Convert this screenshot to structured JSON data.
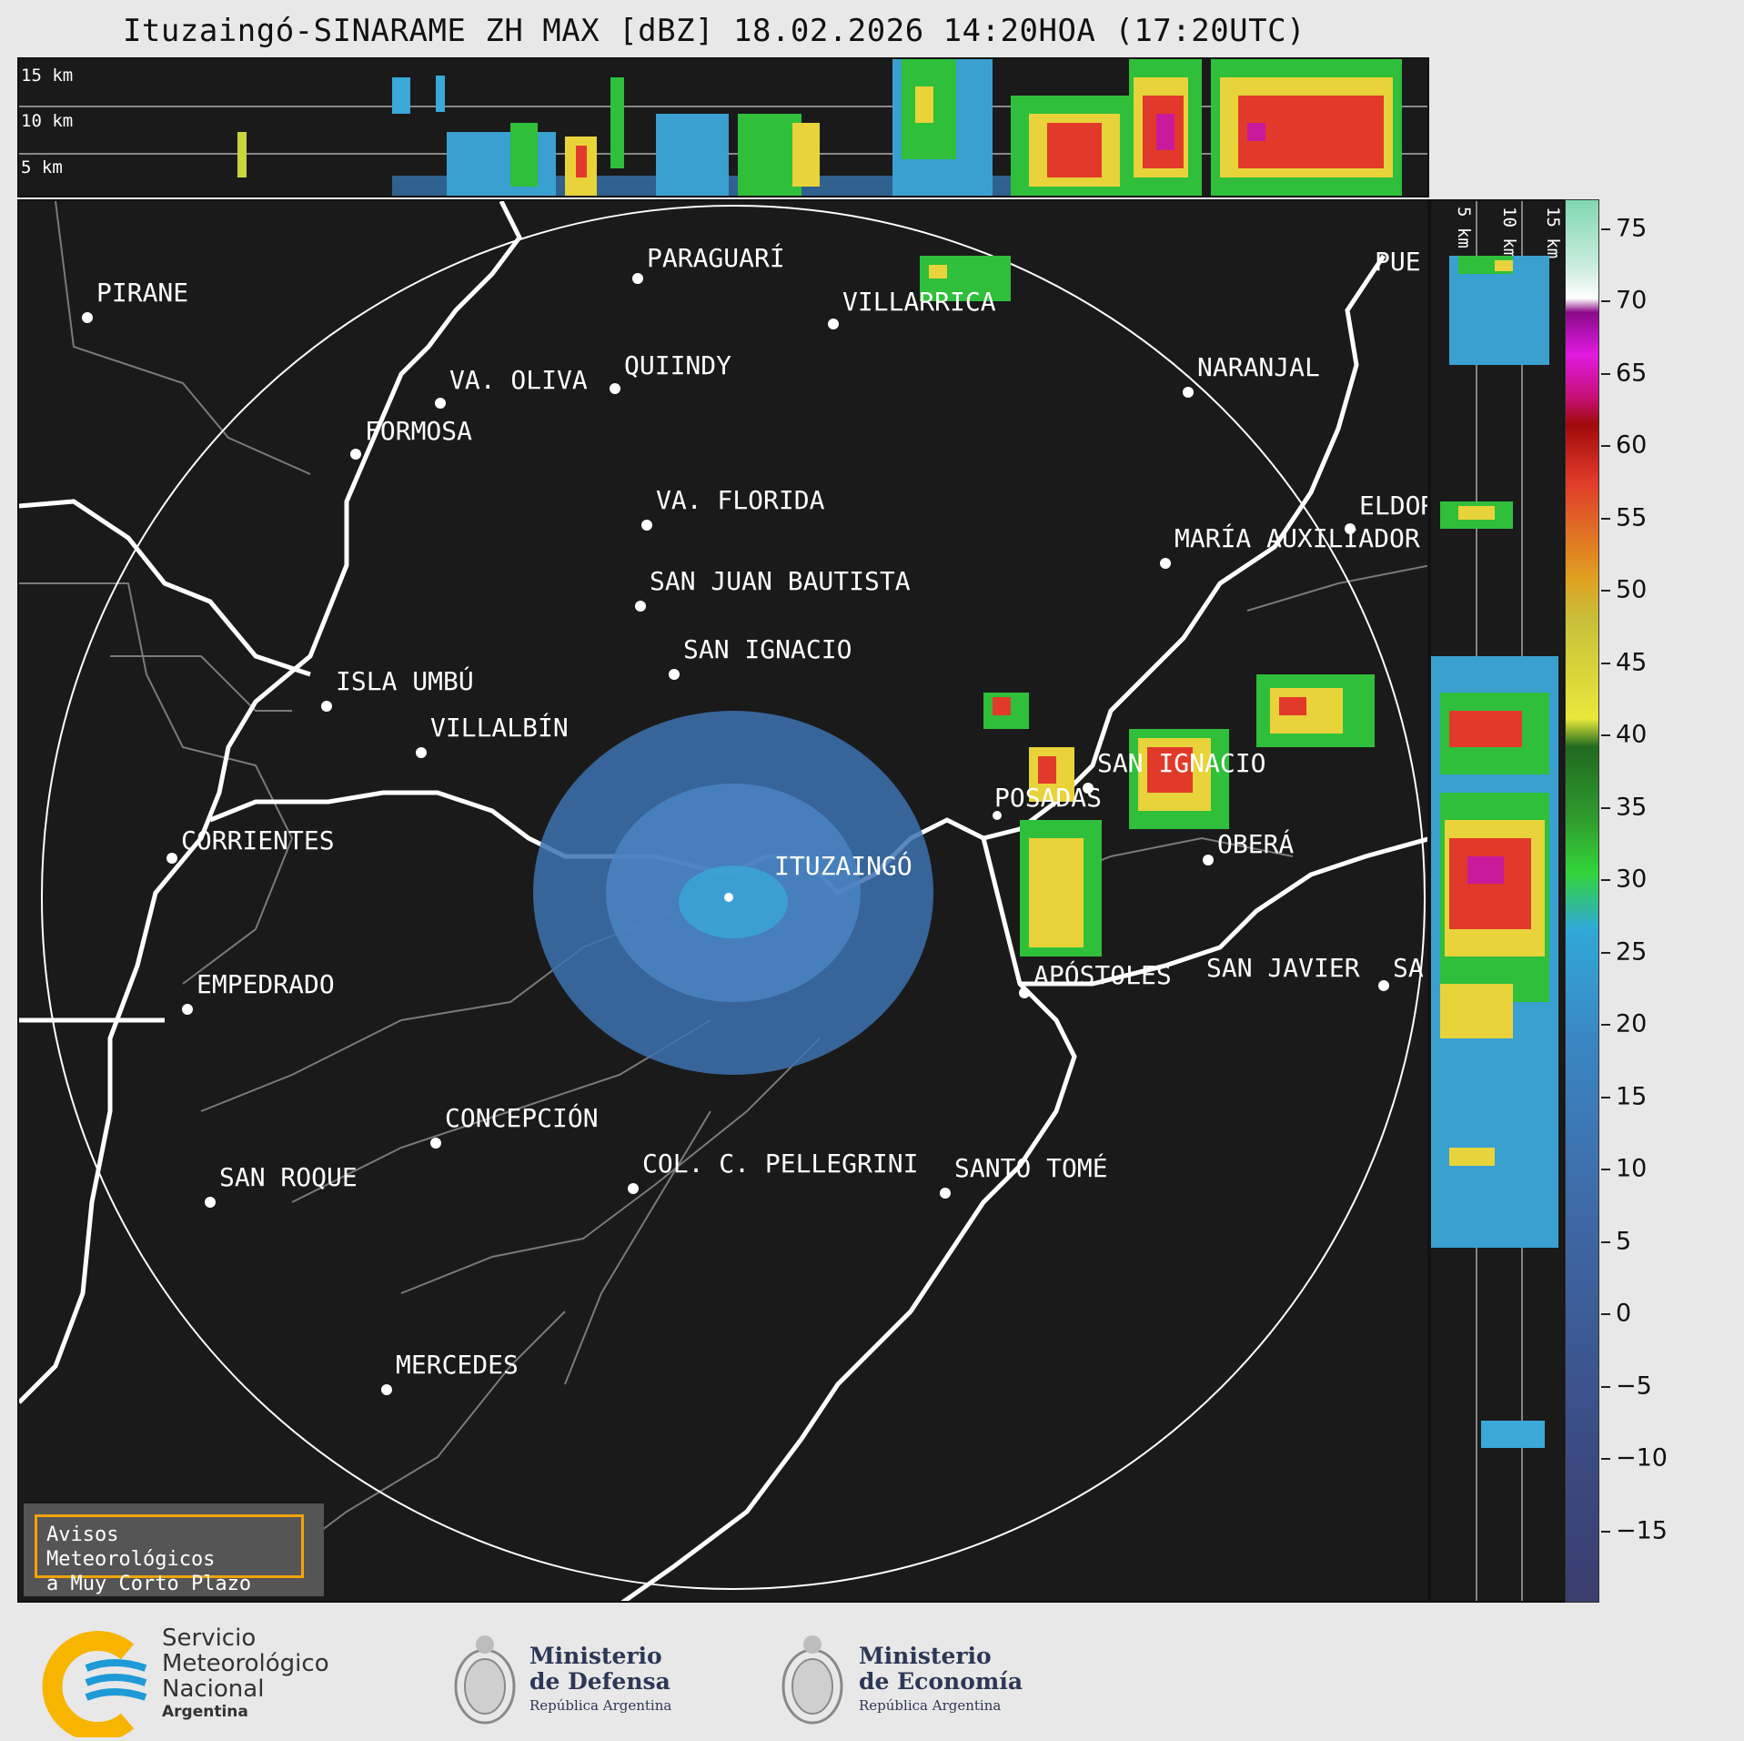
{
  "title": "Ituzaingó-SINARAME ZH MAX [dBZ] 18.02.2026 14:20HOA (17:20UTC)",
  "top_panel": {
    "height_labels": [
      "15 km",
      "10 km",
      "5 km"
    ]
  },
  "side_panel": {
    "height_labels": [
      "5 km",
      "10 km",
      "15 km"
    ]
  },
  "colorbar": {
    "unit": "dBZ",
    "tick_labels": [
      "75",
      "70",
      "65",
      "60",
      "55",
      "50",
      "45",
      "40",
      "35",
      "30",
      "25",
      "20",
      "15",
      "10",
      "5",
      "0",
      "−5",
      "−10",
      "−15"
    ],
    "tick_values": [
      75,
      70,
      65,
      60,
      55,
      50,
      45,
      40,
      35,
      30,
      25,
      20,
      15,
      10,
      5,
      0,
      -5,
      -10,
      -15
    ],
    "range": [
      -20,
      77
    ]
  },
  "cities": [
    {
      "name": "PARAGUARÍ"
    },
    {
      "name": "VILLARRICA"
    },
    {
      "name": "PIRANE"
    },
    {
      "name": "QUIINDY"
    },
    {
      "name": "VA. OLIVA"
    },
    {
      "name": "NARANJAL"
    },
    {
      "name": "FORMOSA"
    },
    {
      "name": "VA. FLORIDA"
    },
    {
      "name": "ELDOR"
    },
    {
      "name": "MARÍA AUXILIADOR"
    },
    {
      "name": "SAN JUAN BAUTISTA"
    },
    {
      "name": "SAN IGNACIO"
    },
    {
      "name": "ISLA UMBÚ"
    },
    {
      "name": "VILLALBÍN"
    },
    {
      "name": "SAN IGNACIO"
    },
    {
      "name": "POSADAS"
    },
    {
      "name": "CORRIENTES"
    },
    {
      "name": "ITUZAINGÓ"
    },
    {
      "name": "OBERÁ"
    },
    {
      "name": "EMPEDRADO"
    },
    {
      "name": "APÓSTOLES"
    },
    {
      "name": "SAN JAVIER"
    },
    {
      "name": "SA"
    },
    {
      "name": "CONCEPCIÓN"
    },
    {
      "name": "SAN ROQUE"
    },
    {
      "name": "COL. C. PELLEGRINI"
    },
    {
      "name": "SANTO TOMÉ"
    },
    {
      "name": "MERCEDES"
    },
    {
      "name": "PUE"
    }
  ],
  "warning": {
    "line1": "Avisos Meteorológicos",
    "line2": "a Muy Corto Plazo"
  },
  "footer": {
    "smn": {
      "line1": "Servicio",
      "line2": "Meteorológico",
      "line3": "Nacional",
      "line4": "Argentina"
    },
    "defensa": {
      "line1": "Ministerio",
      "line2": "de Defensa",
      "sub": "República Argentina"
    },
    "economia": {
      "line1": "Ministerio",
      "line2": "de Economía",
      "sub": "República Argentina"
    }
  },
  "colors": {
    "background": "#1a1a1a",
    "warning_border": "#f5a20a",
    "smn_blue": "#1e9ad6",
    "smn_yellow": "#f7b500"
  }
}
